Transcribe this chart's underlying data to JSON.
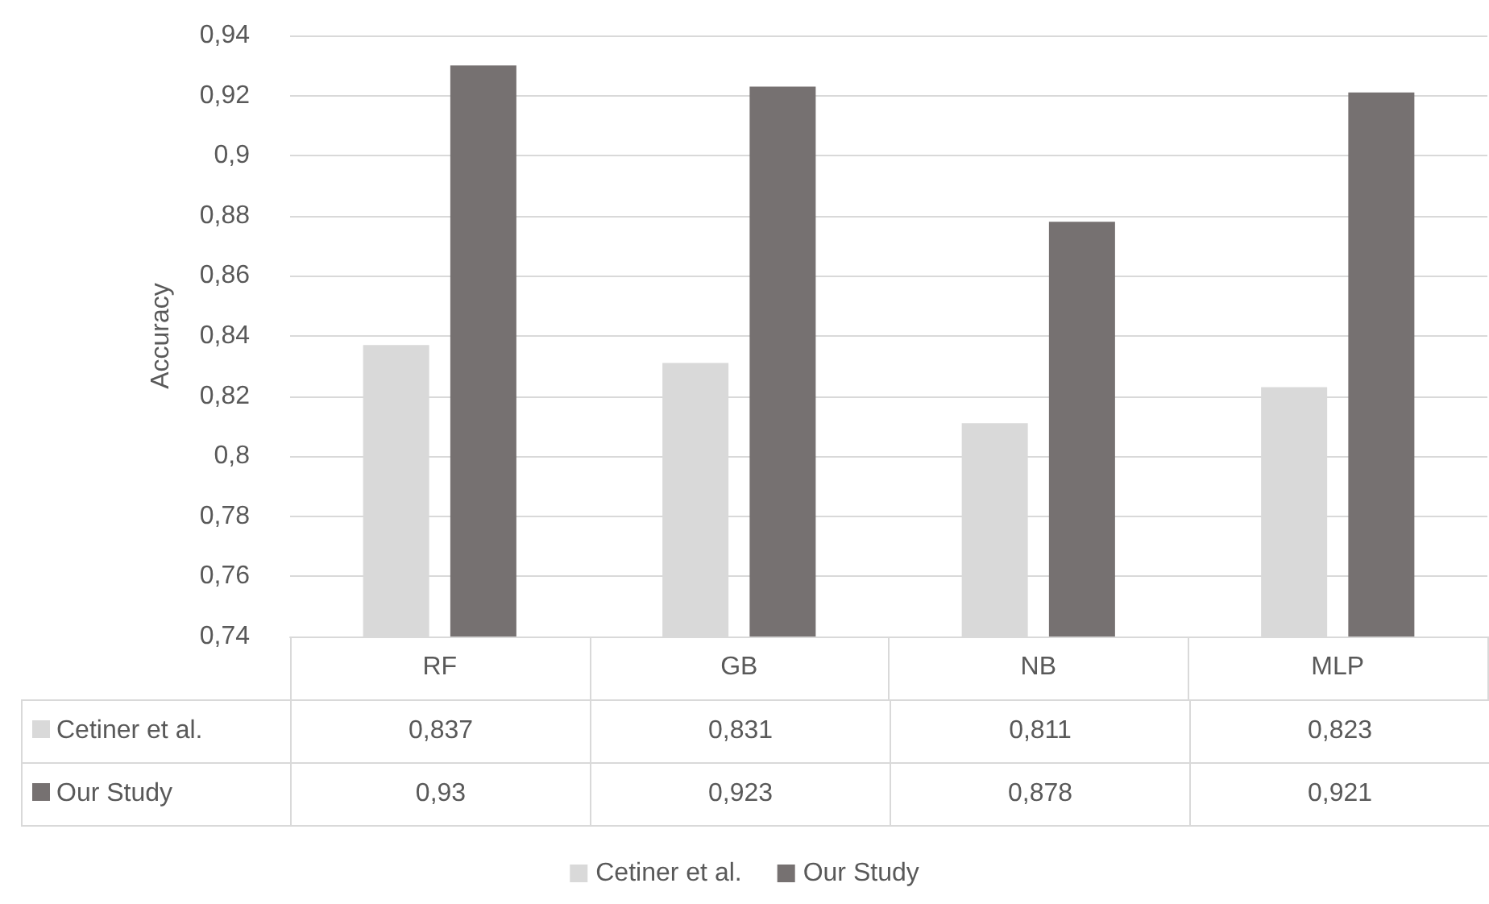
{
  "chart_data": {
    "type": "bar",
    "ylabel": "Accuracy",
    "categories": [
      "RF",
      "GB",
      "NB",
      "MLP"
    ],
    "series": [
      {
        "name": "Cetiner et al.",
        "color": "#d9d9d9",
        "values": [
          0.837,
          0.831,
          0.811,
          0.823
        ],
        "value_labels": [
          "0,837",
          "0,831",
          "0,811",
          "0,823"
        ]
      },
      {
        "name": "Our Study",
        "color": "#767171",
        "values": [
          0.93,
          0.923,
          0.878,
          0.921
        ],
        "value_labels": [
          "0,93",
          "0,923",
          "0,878",
          "0,921"
        ]
      }
    ],
    "ylim": [
      0.74,
      0.94
    ],
    "yticks": [
      {
        "value": 0.74,
        "label": "0,74"
      },
      {
        "value": 0.76,
        "label": "0,76"
      },
      {
        "value": 0.78,
        "label": "0,78"
      },
      {
        "value": 0.8,
        "label": "0,8"
      },
      {
        "value": 0.82,
        "label": "0,82"
      },
      {
        "value": 0.84,
        "label": "0,84"
      },
      {
        "value": 0.86,
        "label": "0,86"
      },
      {
        "value": 0.88,
        "label": "0,88"
      },
      {
        "value": 0.9,
        "label": "0,9"
      },
      {
        "value": 0.92,
        "label": "0,92"
      },
      {
        "value": 0.94,
        "label": "0,94"
      }
    ],
    "grid": "y",
    "legend": "bottom"
  }
}
